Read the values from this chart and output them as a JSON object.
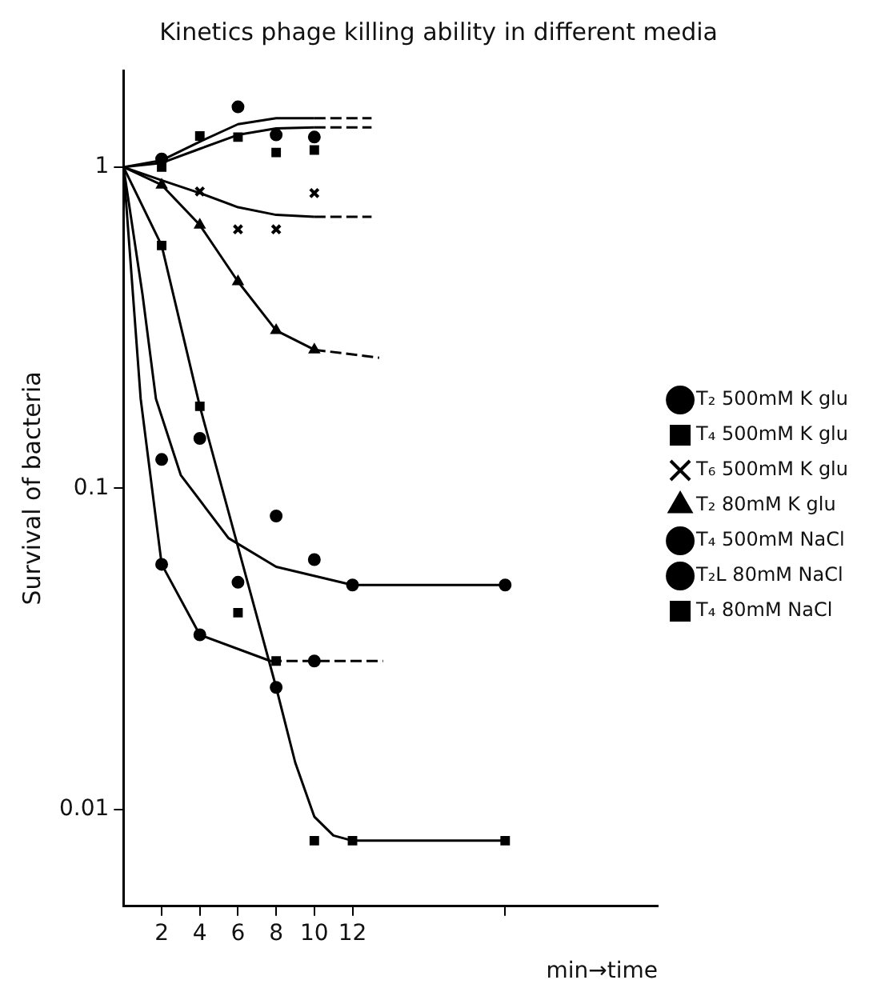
{
  "chart_data": {
    "type": "scatter",
    "title": "Kinetics phage killing ability in different media",
    "xlabel": "min→time",
    "ylabel": "Survival of bacteria",
    "xlim": [
      0,
      28
    ],
    "xticks": [
      2,
      4,
      6,
      8,
      10,
      12,
      {
        "value": 20,
        "label": null
      }
    ],
    "ylim": [
      0.005,
      2
    ],
    "yticks": [
      0.01,
      0.1,
      1
    ],
    "log": "y",
    "grid": false,
    "legend": "right",
    "series": [
      {
        "name": "T₂ 500mM K glu",
        "type": "scatter",
        "marker": "circle",
        "color": "#000000",
        "x": [
          2,
          6,
          8,
          10
        ],
        "values": [
          1.06,
          1.54,
          1.26,
          1.24
        ]
      },
      {
        "name": "T₄ 500mM K glu",
        "type": "scatter",
        "marker": "square",
        "color": "#000000",
        "x": [
          2,
          4,
          6,
          8,
          10
        ],
        "values": [
          1.0,
          1.25,
          1.24,
          1.11,
          1.13
        ]
      },
      {
        "name": "T₆ 500mM K glu",
        "type": "scatter",
        "marker": "cross",
        "color": "#000000",
        "x": [
          4,
          6,
          8,
          10
        ],
        "values": [
          0.84,
          0.64,
          0.64,
          0.83
        ]
      },
      {
        "name": "T₂ 80mM K glu",
        "type": "scatter",
        "marker": "triangle",
        "color": "#000000",
        "x": [
          2,
          4,
          6,
          8,
          10
        ],
        "values": [
          0.88,
          0.66,
          0.44,
          0.31,
          0.27
        ]
      },
      {
        "name": "T₄ 500mM NaCl",
        "type": "scatter",
        "marker": "circle",
        "color": "#000000",
        "x": [
          2,
          4,
          6,
          8,
          10,
          12,
          20
        ],
        "values": [
          0.123,
          0.143,
          0.051,
          0.082,
          0.06,
          0.05,
          0.05
        ]
      },
      {
        "name": "T₂L 80mM NaCl",
        "type": "scatter",
        "marker": "circle",
        "color": "#000000",
        "x": [
          2,
          4,
          8,
          10
        ],
        "values": [
          0.058,
          0.035,
          0.024,
          0.029
        ]
      },
      {
        "name": "T₄ 80mM NaCl",
        "type": "scatter",
        "marker": "square",
        "color": "#000000",
        "x": [
          2,
          4,
          6,
          8,
          10,
          12,
          20
        ],
        "values": [
          0.57,
          0.18,
          0.041,
          0.029,
          0.008,
          0.008,
          0.008
        ]
      },
      {
        "type": "line",
        "marker": "none",
        "line_style": "solid",
        "color": "#000000",
        "x": [
          0,
          2,
          4,
          6,
          8,
          10
        ],
        "values": [
          1,
          1.05,
          1.2,
          1.36,
          1.42,
          1.42
        ]
      },
      {
        "type": "line",
        "marker": "none",
        "line_style": "dashed",
        "color": "#000000",
        "x": [
          10,
          13
        ],
        "values": [
          1.42,
          1.42
        ]
      },
      {
        "type": "line",
        "marker": "none",
        "line_style": "solid",
        "color": "#000000",
        "x": [
          0,
          2,
          4,
          6,
          8,
          10
        ],
        "values": [
          1,
          1.03,
          1.14,
          1.26,
          1.32,
          1.33
        ]
      },
      {
        "type": "line",
        "marker": "none",
        "line_style": "dashed",
        "color": "#000000",
        "x": [
          10,
          13
        ],
        "values": [
          1.33,
          1.33
        ]
      },
      {
        "type": "line",
        "marker": "none",
        "line_style": "solid",
        "color": "#000000",
        "x": [
          0,
          2,
          4,
          6,
          8,
          10
        ],
        "values": [
          1,
          0.91,
          0.83,
          0.75,
          0.71,
          0.7
        ]
      },
      {
        "type": "line",
        "marker": "none",
        "line_style": "dashed",
        "color": "#000000",
        "x": [
          10,
          13
        ],
        "values": [
          0.7,
          0.7
        ]
      },
      {
        "type": "line",
        "marker": "none",
        "line_style": "solid",
        "color": "#000000",
        "x": [
          0,
          2,
          4,
          6,
          8,
          10
        ],
        "values": [
          1,
          0.88,
          0.66,
          0.44,
          0.31,
          0.27
        ]
      },
      {
        "type": "line",
        "marker": "none",
        "line_style": "dashed",
        "color": "#000000",
        "x": [
          10,
          13.4
        ],
        "values": [
          0.27,
          0.255
        ]
      },
      {
        "type": "line",
        "marker": "none",
        "line_style": "solid",
        "color": "#000000",
        "x": [
          0,
          1,
          1.7,
          3,
          5.5,
          8,
          12,
          20
        ],
        "values": [
          1,
          0.4,
          0.19,
          0.11,
          0.07,
          0.057,
          0.05,
          0.05
        ]
      },
      {
        "type": "line",
        "marker": "none",
        "line_style": "solid",
        "color": "#000000",
        "x": [
          0,
          0.9,
          2,
          4,
          7.7
        ],
        "values": [
          1,
          0.19,
          0.058,
          0.035,
          0.029
        ]
      },
      {
        "type": "line",
        "marker": "none",
        "line_style": "dashed",
        "color": "#000000",
        "x": [
          7.7,
          13.6
        ],
        "values": [
          0.029,
          0.029
        ]
      },
      {
        "type": "line",
        "marker": "none",
        "line_style": "solid",
        "color": "#000000",
        "x": [
          0,
          2,
          4,
          8,
          9,
          10,
          11,
          12,
          20
        ],
        "values": [
          1,
          0.57,
          0.18,
          0.024,
          0.014,
          0.0095,
          0.0083,
          0.008,
          0.008
        ]
      }
    ]
  }
}
